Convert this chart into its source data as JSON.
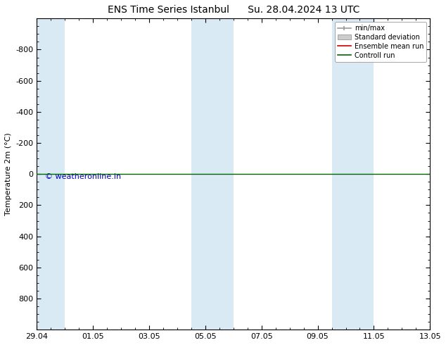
{
  "title": "ENS Time Series Istanbul",
  "subtitle": "Su. 28.04.2024 13 UTC",
  "ylabel": "Temperature 2m (°C)",
  "ylim_top": -1000,
  "ylim_bottom": 1000,
  "yticks": [
    -800,
    -600,
    -400,
    -200,
    0,
    200,
    400,
    600,
    800
  ],
  "xtick_labels": [
    "29.04",
    "01.05",
    "03.05",
    "05.05",
    "07.05",
    "09.05",
    "11.05",
    "13.05"
  ],
  "xtick_positions": [
    0,
    2,
    4,
    6,
    8,
    10,
    12,
    14
  ],
  "xlim": [
    0,
    14
  ],
  "blue_bands": [
    [
      0.0,
      1.0
    ],
    [
      5.5,
      6.25
    ],
    [
      6.25,
      7.0
    ],
    [
      10.5,
      11.25
    ],
    [
      11.25,
      12.0
    ]
  ],
  "green_line_y": 0,
  "watermark": "© weatheronline.in",
  "watermark_color": "#0000bb",
  "background_color": "#ffffff",
  "band_color": "#daeaf5",
  "legend_labels": [
    "min/max",
    "Standard deviation",
    "Ensemble mean run",
    "Controll run"
  ],
  "legend_colors": [
    "#999999",
    "#cccccc",
    "#cc0000",
    "#006600"
  ],
  "title_fontsize": 10,
  "axis_label_fontsize": 8,
  "tick_fontsize": 8,
  "legend_fontsize": 7
}
